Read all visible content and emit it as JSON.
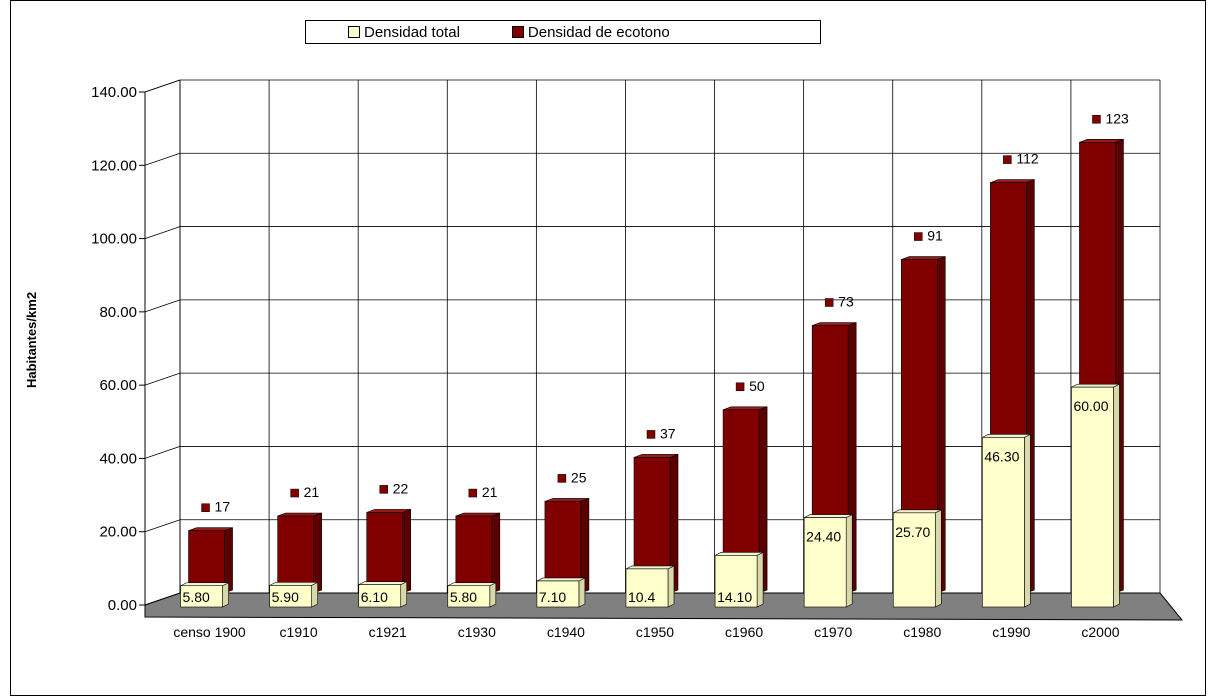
{
  "chart_data": {
    "type": "bar",
    "title": "",
    "ylabel": "Habitantes/km2",
    "xlabel": "",
    "ylim": [
      0,
      140
    ],
    "y_ticks": [
      "0.00",
      "20.00",
      "40.00",
      "60.00",
      "80.00",
      "100.00",
      "120.00",
      "140.00"
    ],
    "categories": [
      "censo 1900",
      "c1910",
      "c1921",
      "c1930",
      "c1940",
      "c1950",
      "c1960",
      "c1970",
      "c1980",
      "c1990",
      "c2000"
    ],
    "series": [
      {
        "name": "Densidad total",
        "color": "#ffffcc",
        "values": [
          5.8,
          5.9,
          6.1,
          5.8,
          7.1,
          10.4,
          14.1,
          24.4,
          25.7,
          46.3,
          60.0
        ],
        "labels": [
          "5.80",
          "5.90",
          "6.10",
          "5.80",
          "7.10",
          "10.4",
          "14.10",
          "24.40",
          "25.70",
          "46.30",
          "60.00"
        ]
      },
      {
        "name": "Densidad de ecotono",
        "color": "#800000",
        "values": [
          17,
          21,
          22,
          21,
          25,
          37,
          50,
          73,
          91,
          112,
          123
        ],
        "labels": [
          "17",
          "21",
          "22",
          "21",
          "25",
          "37",
          "50",
          "73",
          "91",
          "112",
          "123"
        ]
      }
    ],
    "grid": true,
    "legend": "top",
    "style": "3d"
  }
}
